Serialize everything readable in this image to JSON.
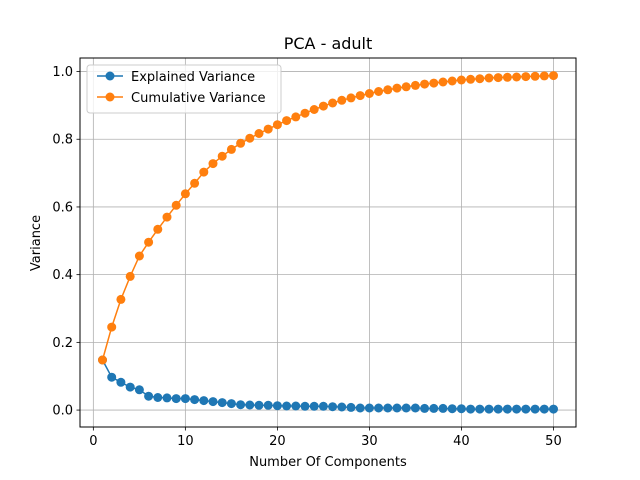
{
  "chart_data": {
    "type": "line",
    "title": "PCA - adult",
    "xlabel": "Number Of Components",
    "ylabel": "Variance",
    "xlim": [
      -1.45,
      52.45
    ],
    "ylim": [
      -0.05,
      1.04
    ],
    "xticks": [
      0,
      10,
      20,
      30,
      40,
      50
    ],
    "xtick_labels": [
      "0",
      "10",
      "20",
      "30",
      "40",
      "50"
    ],
    "yticks": [
      0.0,
      0.2,
      0.4,
      0.6,
      0.8,
      1.0
    ],
    "ytick_labels": [
      "0.0",
      "0.2",
      "0.4",
      "0.6",
      "0.8",
      "1.0"
    ],
    "grid": true,
    "legend_position": "upper-left",
    "x": [
      1,
      2,
      3,
      4,
      5,
      6,
      7,
      8,
      9,
      10,
      11,
      12,
      13,
      14,
      15,
      16,
      17,
      18,
      19,
      20,
      21,
      22,
      23,
      24,
      25,
      26,
      27,
      28,
      29,
      30,
      31,
      32,
      33,
      34,
      35,
      36,
      37,
      38,
      39,
      40,
      41,
      42,
      43,
      44,
      45,
      46,
      47,
      48,
      49,
      50
    ],
    "series": [
      {
        "name": "Explained Variance",
        "color": "#1f77b4",
        "values": [
          0.148,
          0.097,
          0.082,
          0.068,
          0.06,
          0.041,
          0.037,
          0.036,
          0.034,
          0.034,
          0.031,
          0.028,
          0.025,
          0.022,
          0.019,
          0.016,
          0.015,
          0.014,
          0.014,
          0.013,
          0.012,
          0.012,
          0.011,
          0.011,
          0.011,
          0.01,
          0.009,
          0.008,
          0.006,
          0.006,
          0.006,
          0.006,
          0.006,
          0.006,
          0.006,
          0.005,
          0.005,
          0.005,
          0.004,
          0.004,
          0.003,
          0.003,
          0.003,
          0.003,
          0.003,
          0.003,
          0.003,
          0.003,
          0.003,
          0.003
        ]
      },
      {
        "name": "Cumulative Variance",
        "color": "#ff7f0e",
        "values": [
          0.148,
          0.245,
          0.327,
          0.395,
          0.455,
          0.496,
          0.534,
          0.57,
          0.605,
          0.639,
          0.67,
          0.703,
          0.728,
          0.75,
          0.77,
          0.788,
          0.803,
          0.817,
          0.83,
          0.843,
          0.855,
          0.866,
          0.877,
          0.888,
          0.898,
          0.907,
          0.915,
          0.922,
          0.929,
          0.935,
          0.941,
          0.946,
          0.951,
          0.955,
          0.959,
          0.963,
          0.966,
          0.969,
          0.972,
          0.975,
          0.977,
          0.979,
          0.981,
          0.982,
          0.983,
          0.984,
          0.985,
          0.986,
          0.987,
          0.988
        ]
      }
    ]
  }
}
